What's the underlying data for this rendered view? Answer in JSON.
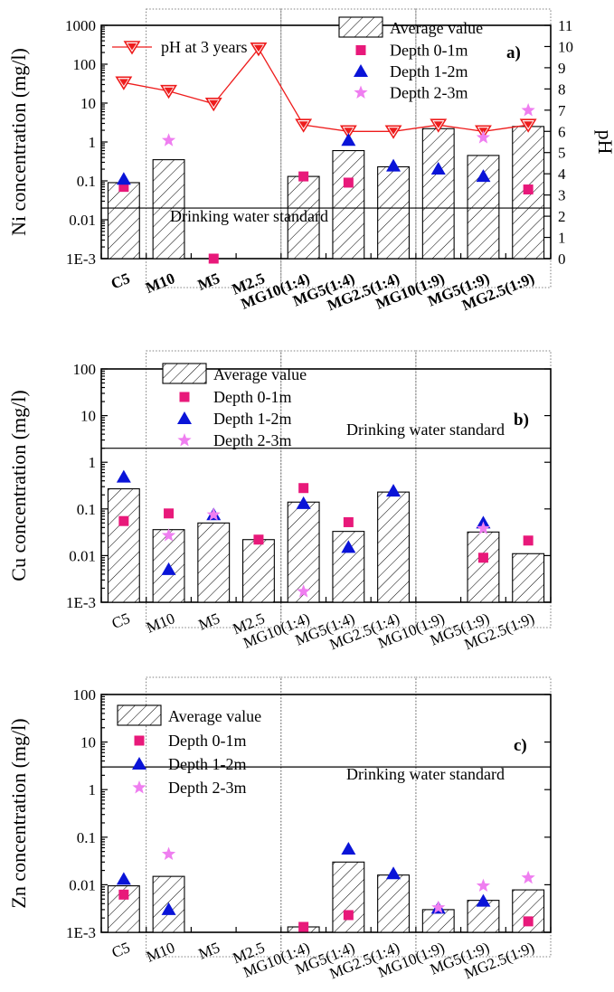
{
  "chart_data": [
    {
      "type": "bar",
      "panel_label": "a)",
      "ylabel": "Ni concentration (mg/l)",
      "y2label": "pH",
      "yscale": "log",
      "ylim": [
        0.001,
        1000
      ],
      "yticks": [
        "1E-3",
        "0.01",
        "0.1",
        "1",
        "10",
        "100",
        "1000"
      ],
      "y2lim": [
        0,
        11
      ],
      "y2ticks": [
        "0",
        "1",
        "2",
        "3",
        "4",
        "5",
        "6",
        "7",
        "8",
        "9",
        "10",
        "11"
      ],
      "categories": [
        "C5",
        "M10",
        "M5",
        "M2.5",
        "MG10(1:4)",
        "MG5(1:4)",
        "MG2.5(1:4)",
        "MG10(1:9)",
        "MG5(1:9)",
        "MG2.5(1:9)"
      ],
      "series": [
        {
          "name": "Average value",
          "kind": "bar",
          "values": [
            0.09,
            0.35,
            null,
            null,
            0.13,
            0.6,
            0.23,
            2.2,
            0.45,
            2.5
          ]
        },
        {
          "name": "Depth 0-1m",
          "kind": "marker",
          "color": "#e8197a",
          "values": [
            0.07,
            null,
            0.001,
            null,
            0.13,
            0.09,
            null,
            null,
            null,
            0.06
          ]
        },
        {
          "name": "Depth 1-2m",
          "kind": "marker",
          "color": "#0a14d8",
          "values": [
            0.11,
            null,
            null,
            null,
            null,
            1.1,
            0.24,
            0.2,
            0.13,
            null
          ]
        },
        {
          "name": "Depth 2-3m",
          "kind": "marker",
          "color": "#ef7ef0",
          "values": [
            null,
            1.1,
            null,
            null,
            null,
            null,
            null,
            null,
            1.3,
            6.5
          ]
        },
        {
          "name": "pH at 3 years",
          "kind": "line",
          "axis": "right",
          "color": "#ee1c1c",
          "values": [
            8.3,
            7.9,
            7.3,
            9.9,
            6.3,
            6.0,
            6.0,
            6.3,
            6.0,
            6.3
          ]
        }
      ],
      "hline": {
        "value": 0.02,
        "label": "Drinking water standard"
      },
      "group_boxes": [
        [
          1,
          3
        ],
        [
          4,
          6
        ],
        [
          7,
          9
        ]
      ]
    },
    {
      "type": "bar",
      "panel_label": "b)",
      "ylabel": "Cu concentration (mg/l)",
      "yscale": "log",
      "ylim": [
        0.001,
        100
      ],
      "yticks": [
        "1E-3",
        "0.01",
        "0.1",
        "1",
        "10",
        "100"
      ],
      "categories": [
        "C5",
        "M10",
        "M5",
        "M2.5",
        "MG10(1:4)",
        "MG5(1:4)",
        "MG2.5(1:4)",
        "MG10(1:9)",
        "MG5(1:9)",
        "MG2.5(1:9)"
      ],
      "series": [
        {
          "name": "Average value",
          "kind": "bar",
          "values": [
            0.27,
            0.036,
            0.05,
            0.022,
            0.14,
            0.033,
            0.23,
            null,
            0.032,
            0.011
          ]
        },
        {
          "name": "Depth 0-1m",
          "kind": "marker",
          "color": "#e8197a",
          "values": [
            0.055,
            0.08,
            null,
            0.022,
            0.28,
            0.052,
            null,
            null,
            0.009,
            0.021
          ]
        },
        {
          "name": "Depth 1-2m",
          "kind": "marker",
          "color": "#0a14d8",
          "values": [
            0.48,
            0.005,
            0.075,
            null,
            0.13,
            0.015,
            0.24,
            null,
            0.05,
            null
          ]
        },
        {
          "name": "Depth 2-3m",
          "kind": "marker",
          "color": "#ef7ef0",
          "values": [
            null,
            0.027,
            0.075,
            null,
            0.0017,
            null,
            null,
            null,
            0.038,
            null
          ]
        }
      ],
      "hline": {
        "value": 2.0,
        "label": "Drinking water standard"
      },
      "group_boxes": [
        [
          1,
          3
        ],
        [
          4,
          6
        ],
        [
          7,
          9
        ]
      ]
    },
    {
      "type": "bar",
      "panel_label": "c)",
      "ylabel": "Zn concentration (mg/l)",
      "yscale": "log",
      "ylim": [
        0.001,
        100
      ],
      "yticks": [
        "1E-3",
        "0.01",
        "0.1",
        "1",
        "10",
        "100"
      ],
      "categories": [
        "C5",
        "M10",
        "M5",
        "M2.5",
        "MG10(1:4)",
        "MG5(1:4)",
        "MG2.5(1:4)",
        "MG10(1:9)",
        "MG5(1:9)",
        "MG2.5(1:9)"
      ],
      "series": [
        {
          "name": "Average value",
          "kind": "bar",
          "values": [
            0.0095,
            0.015,
            null,
            null,
            0.0013,
            0.03,
            0.016,
            0.003,
            0.0047,
            0.0078
          ]
        },
        {
          "name": "Depth 0-1m",
          "kind": "marker",
          "color": "#e8197a",
          "values": [
            0.0062,
            null,
            null,
            null,
            0.0013,
            0.0023,
            null,
            null,
            null,
            0.0017
          ]
        },
        {
          "name": "Depth 1-2m",
          "kind": "marker",
          "color": "#0a14d8",
          "values": [
            0.013,
            0.003,
            null,
            null,
            null,
            0.056,
            0.017,
            0.0032,
            0.0045,
            null
          ]
        },
        {
          "name": "Depth 2-3m",
          "kind": "marker",
          "color": "#ef7ef0",
          "values": [
            null,
            0.044,
            null,
            null,
            null,
            null,
            null,
            0.0033,
            0.0095,
            0.014
          ]
        }
      ],
      "hline": {
        "value": 3.0,
        "label": "Drinking water standard"
      },
      "group_boxes": [
        [
          1,
          3
        ],
        [
          4,
          6
        ],
        [
          7,
          9
        ]
      ]
    }
  ]
}
